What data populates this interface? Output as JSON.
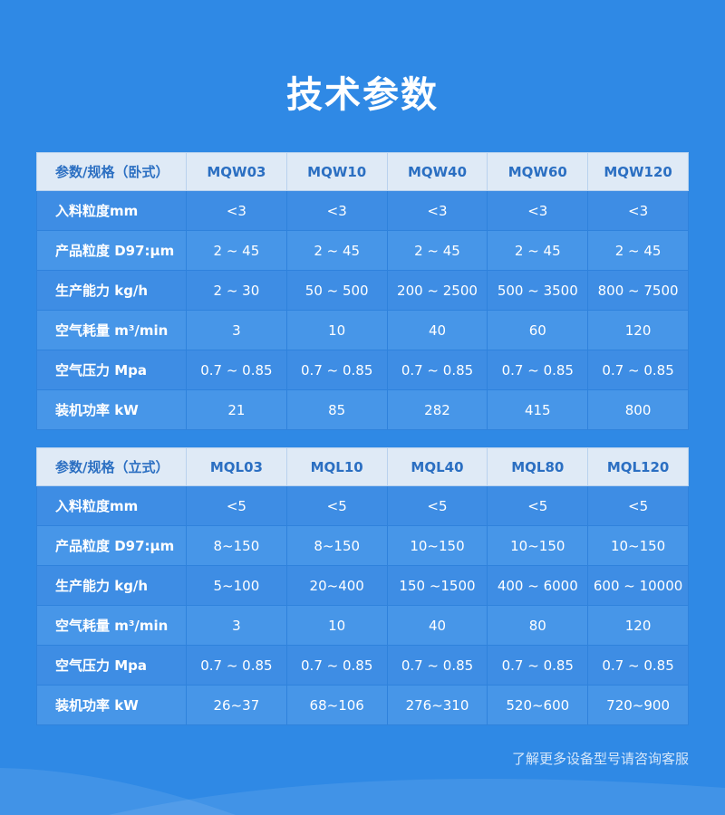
{
  "title": "技术参数",
  "tables": [
    {
      "header": [
        "参数/规格（卧式）",
        "MQW03",
        "MQW10",
        "MQW40",
        "MQW60",
        "MQW120"
      ],
      "rows": [
        [
          "入料粒度mm",
          "<3",
          "<3",
          "<3",
          "<3",
          "<3"
        ],
        [
          "产品粒度 D97:μm",
          "2 ~ 45",
          "2 ~ 45",
          "2 ~ 45",
          "2 ~ 45",
          "2 ~ 45"
        ],
        [
          "生产能力 kg/h",
          "2 ~ 30",
          "50 ~ 500",
          "200 ~ 2500",
          "500 ~ 3500",
          "800 ~ 7500"
        ],
        [
          "空气耗量 m³/min",
          "3",
          "10",
          "40",
          "60",
          "120"
        ],
        [
          "空气压力 Mpa",
          "0.7 ~ 0.85",
          "0.7 ~ 0.85",
          "0.7 ~ 0.85",
          "0.7 ~ 0.85",
          "0.7 ~ 0.85"
        ],
        [
          "装机功率 kW",
          "21",
          "85",
          "282",
          "415",
          "800"
        ]
      ]
    },
    {
      "header": [
        "参数/规格（立式）",
        "MQL03",
        "MQL10",
        "MQL40",
        "MQL80",
        "MQL120"
      ],
      "rows": [
        [
          "入料粒度mm",
          "<5",
          "<5",
          "<5",
          "<5",
          "<5"
        ],
        [
          "产品粒度 D97:μm",
          "8~150",
          "8~150",
          "10~150",
          "10~150",
          "10~150"
        ],
        [
          "生产能力 kg/h",
          "5~100",
          "20~400",
          "150 ~1500",
          "400 ~ 6000",
          "600 ~ 10000"
        ],
        [
          "空气耗量 m³/min",
          "3",
          "10",
          "40",
          "80",
          "120"
        ],
        [
          "空气压力 Mpa",
          "0.7 ~ 0.85",
          "0.7 ~ 0.85",
          "0.7 ~ 0.85",
          "0.7 ~ 0.85",
          "0.7 ~ 0.85"
        ],
        [
          "装机功率 kW",
          "26~37",
          "68~106",
          "276~310",
          "520~600",
          "720~900"
        ]
      ]
    }
  ],
  "note": "了解更多设备型号请咨询客服"
}
